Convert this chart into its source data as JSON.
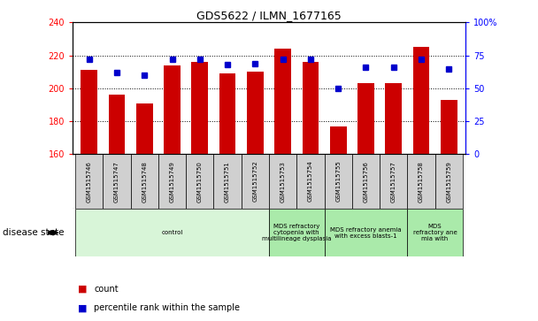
{
  "title": "GDS5622 / ILMN_1677165",
  "samples": [
    "GSM1515746",
    "GSM1515747",
    "GSM1515748",
    "GSM1515749",
    "GSM1515750",
    "GSM1515751",
    "GSM1515752",
    "GSM1515753",
    "GSM1515754",
    "GSM1515755",
    "GSM1515756",
    "GSM1515757",
    "GSM1515758",
    "GSM1515759"
  ],
  "counts": [
    211,
    196,
    191,
    214,
    216,
    209,
    210,
    224,
    216,
    177,
    203,
    203,
    225,
    193
  ],
  "percentiles": [
    72,
    62,
    60,
    72,
    72,
    68,
    69,
    72,
    72,
    50,
    66,
    66,
    72,
    65
  ],
  "ylim_left": [
    160,
    240
  ],
  "ylim_right": [
    0,
    100
  ],
  "yticks_left": [
    160,
    180,
    200,
    220,
    240
  ],
  "yticks_right": [
    0,
    25,
    50,
    75,
    100
  ],
  "bar_color": "#cc0000",
  "dot_color": "#0000cc",
  "bar_bottom": 160,
  "disease_groups": [
    {
      "label": "control",
      "start": 0,
      "end": 7,
      "color": "#d8f5d8"
    },
    {
      "label": "MDS refractory\ncytopenia with\nmultilineage dysplasia",
      "start": 7,
      "end": 9,
      "color": "#aaeaaa"
    },
    {
      "label": "MDS refractory anemia\nwith excess blasts-1",
      "start": 9,
      "end": 12,
      "color": "#aaeaaa"
    },
    {
      "label": "MDS\nrefractory ane\nmia with",
      "start": 12,
      "end": 14,
      "color": "#aaeaaa"
    }
  ],
  "xlabel_disease": "disease state",
  "legend_count": "count",
  "legend_percentile": "percentile rank within the sample",
  "grid_color": "#888888",
  "bg_color": "#ffffff",
  "label_bg": "#d0d0d0"
}
